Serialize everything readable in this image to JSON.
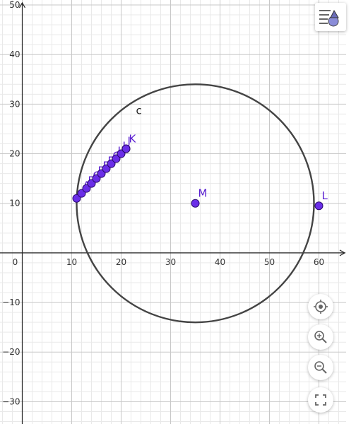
{
  "graph": {
    "x_range": [
      -4.5,
      65.5
    ],
    "y_range": [
      -34.5,
      51
    ],
    "x_ticks": [
      0,
      10,
      20,
      30,
      40,
      50,
      60
    ],
    "y_ticks": [
      -30,
      -20,
      -10,
      10,
      20,
      30,
      40,
      50
    ],
    "x_tick_labels": [
      "0",
      "10",
      "20",
      "30",
      "40",
      "50",
      "60"
    ],
    "y_tick_labels": [
      "−30",
      "−20",
      "−10",
      "10",
      "20",
      "30",
      "40",
      "50"
    ],
    "circle": {
      "label": "c",
      "center": [
        35,
        10
      ],
      "radius": 24,
      "label_pos": [
        23,
        28
      ],
      "color": "#444444"
    },
    "points": [
      {
        "name": "M",
        "x": 35,
        "y": 10
      },
      {
        "name": "L",
        "x": 60,
        "y": 9.5
      },
      {
        "name": "K",
        "x": 21,
        "y": 21
      }
    ],
    "point_sequence": {
      "start": [
        11,
        11
      ],
      "end": [
        21,
        21
      ],
      "count": 11,
      "labels": [
        "",
        "A",
        "B",
        "C",
        "D",
        "E",
        "F",
        "G",
        "H",
        "I",
        "J"
      ]
    },
    "point_color": "#6a2ee8",
    "point_label_color": "#5a1fd1"
  },
  "controls": {
    "menu_icon": "algebra-menu-icon",
    "buttons": [
      {
        "name": "recenter-button",
        "icon": "target-icon"
      },
      {
        "name": "zoom-in-button",
        "icon": "zoom-in-icon"
      },
      {
        "name": "zoom-out-button",
        "icon": "zoom-out-icon"
      },
      {
        "name": "fullscreen-button",
        "icon": "fullscreen-icon"
      }
    ]
  }
}
